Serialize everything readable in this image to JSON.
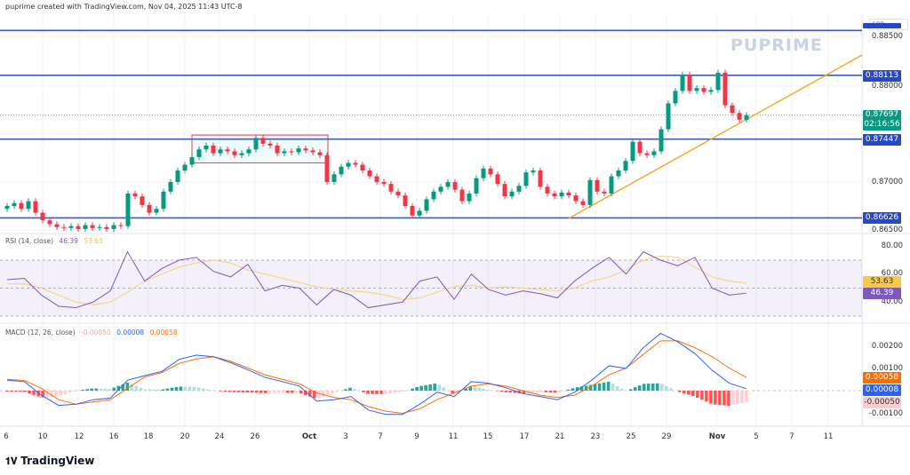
{
  "header": {
    "caption": "puprime created with TradingView.com, Nov 04, 2025 11:43 UTC-8"
  },
  "watermark": "PUPRIME",
  "currency": "GBP",
  "colors": {
    "up": "#089981",
    "down": "#f23645",
    "level": "#3a5bbf",
    "trend": "#f5a623",
    "rsi": "#7e57c2",
    "rsi_ma": "#f7d58a",
    "macd": "#2962ff",
    "signal": "#ff6d00"
  },
  "price_axis": {
    "ticks": [
      "0.88500",
      "0.88000",
      "0.87000",
      "0.86500"
    ],
    "tags": [
      {
        "label": "0.88113",
        "value": 0.88113,
        "color": "#2848c8"
      },
      {
        "label": "0.87447",
        "value": 0.87447,
        "color": "#2848c8"
      },
      {
        "label": "0.86626",
        "value": 0.86626,
        "color": "#2848c8"
      }
    ],
    "top_level": 0.8858,
    "last_price": "0.87697",
    "countdown": "02:16:56"
  },
  "chart_data": [
    {
      "type": "candlestick",
      "series_closes": [
        0.8675,
        0.8678,
        0.8672,
        0.868,
        0.8668,
        0.866,
        0.8656,
        0.8653,
        0.8652,
        0.8654,
        0.8651,
        0.8655,
        0.8652,
        0.8653,
        0.8651,
        0.8655,
        0.8654,
        0.8688,
        0.8685,
        0.8676,
        0.8668,
        0.8672,
        0.869,
        0.87,
        0.8712,
        0.8718,
        0.8726,
        0.8734,
        0.8738,
        0.873,
        0.8734,
        0.8732,
        0.8728,
        0.873,
        0.8734,
        0.8746,
        0.874,
        0.8738,
        0.873,
        0.8732,
        0.8731,
        0.8735,
        0.8733,
        0.8731,
        0.8728,
        0.87,
        0.8708,
        0.8716,
        0.872,
        0.8718,
        0.8712,
        0.8706,
        0.87,
        0.8698,
        0.869,
        0.8686,
        0.8675,
        0.8665,
        0.867,
        0.8682,
        0.869,
        0.8695,
        0.87,
        0.8692,
        0.868,
        0.8688,
        0.8704,
        0.8714,
        0.8708,
        0.8698,
        0.8685,
        0.869,
        0.8696,
        0.871,
        0.8712,
        0.8695,
        0.8688,
        0.8685,
        0.8689,
        0.8686,
        0.868,
        0.8676,
        0.8702,
        0.869,
        0.8688,
        0.8706,
        0.8712,
        0.8722,
        0.8742,
        0.873,
        0.8728,
        0.8732,
        0.8755,
        0.8782,
        0.8795,
        0.8812,
        0.8795,
        0.8798,
        0.8794,
        0.8796,
        0.8814,
        0.878,
        0.8772,
        0.8765,
        0.87697
      ],
      "levels": [
        0.8858,
        0.88113,
        0.87447,
        0.86626
      ],
      "consolidation_box": {
        "price_high": 0.8749,
        "price_low": 0.872
      },
      "x_ticks": [
        "6",
        "10",
        "12",
        "16",
        "18",
        "20",
        "24",
        "26",
        "Oct",
        "3",
        "7",
        "9",
        "11",
        "15",
        "17",
        "21",
        "23",
        "25",
        "29",
        "Nov",
        "5",
        "7",
        "11"
      ]
    },
    {
      "type": "line",
      "title": "RSI (14, close)",
      "values_label": [
        "46.39",
        "53.63"
      ],
      "y_ticks": [
        "80.00",
        "60.00",
        "40.00"
      ],
      "bands": [
        70,
        50,
        30
      ],
      "series": [
        {
          "name": "RSI",
          "values": [
            56,
            57,
            45,
            37,
            36,
            40,
            48,
            76,
            55,
            64,
            70,
            72,
            62,
            58,
            67,
            48,
            52,
            50,
            38,
            49,
            45,
            36,
            38,
            40,
            55,
            58,
            42,
            60,
            49,
            45,
            48,
            46,
            43,
            55,
            64,
            72,
            60,
            76,
            70,
            66,
            72,
            50,
            45,
            46.39
          ]
        },
        {
          "name": "RSI-based MA",
          "values": [
            53,
            53,
            50,
            45,
            40,
            38,
            40,
            47,
            55,
            60,
            65,
            68,
            70,
            68,
            63,
            60,
            57,
            54,
            51,
            49,
            48,
            47,
            45,
            42,
            43,
            47,
            51,
            52,
            50,
            51,
            50,
            49,
            48,
            50,
            55,
            58,
            63,
            70,
            73,
            72,
            65,
            58,
            55,
            53.63
          ]
        }
      ],
      "tags": [
        {
          "label": "53.63",
          "color": "#f7c948"
        },
        {
          "label": "46.39",
          "color": "#7e57c2"
        }
      ]
    },
    {
      "type": "line",
      "title": "MACD (12, 26, close)",
      "values_label": [
        "-0.00050",
        "0.00008",
        "0.00058"
      ],
      "y_ticks": [
        "0.00200",
        "0.00100",
        "-0.00100"
      ],
      "series": [
        {
          "name": "MACD",
          "values": [
            0.00046,
            0.0004,
            -0.0002,
            -0.00065,
            -0.0006,
            -0.0004,
            -0.00033,
            0.00046,
            0.00066,
            0.00085,
            0.00138,
            0.00157,
            0.0015,
            0.00124,
            0.00092,
            0.00059,
            0.0004,
            0.0002,
            -0.00046,
            -0.0004,
            -0.00026,
            -0.00085,
            -0.00105,
            -0.00105,
            -0.0006,
            -7e-05,
            -0.00026,
            0.0004,
            0.00033,
            0.00013,
            -0.00013,
            -0.00026,
            -0.0004,
            -7e-05,
            0.00046,
            0.0011,
            0.00098,
            0.0019,
            0.00253,
            0.00216,
            0.00164,
            0.0009,
            0.00033,
            8e-05
          ]
        },
        {
          "name": "Signal",
          "values": [
            0.0005,
            0.00045,
            0.0001,
            -0.0004,
            -0.0006,
            -0.0005,
            -0.0004,
            0.0001,
            0.0006,
            0.0008,
            0.0012,
            0.0014,
            0.0015,
            0.0013,
            0.001,
            0.0007,
            0.0005,
            0.0003,
            -0.0001,
            -0.0003,
            -0.0004,
            -0.0007,
            -0.0009,
            -0.001,
            -0.0008,
            -0.0004,
            -0.0001,
            0.0002,
            0.0003,
            0.0002,
            0,
            -0.0002,
            -0.0003,
            -0.0002,
            0.0002,
            0.0007,
            0.001,
            0.0016,
            0.0022,
            0.0022,
            0.0019,
            0.0015,
            0.001,
            0.00058
          ]
        }
      ],
      "tags": [
        {
          "label": "0.00058",
          "color": "#ff6d00"
        },
        {
          "label": "0.00008",
          "color": "#2962ff"
        },
        {
          "label": "-0.00050",
          "color": "#fccbcd"
        }
      ]
    }
  ],
  "footer": {
    "logo": "TradingView"
  }
}
